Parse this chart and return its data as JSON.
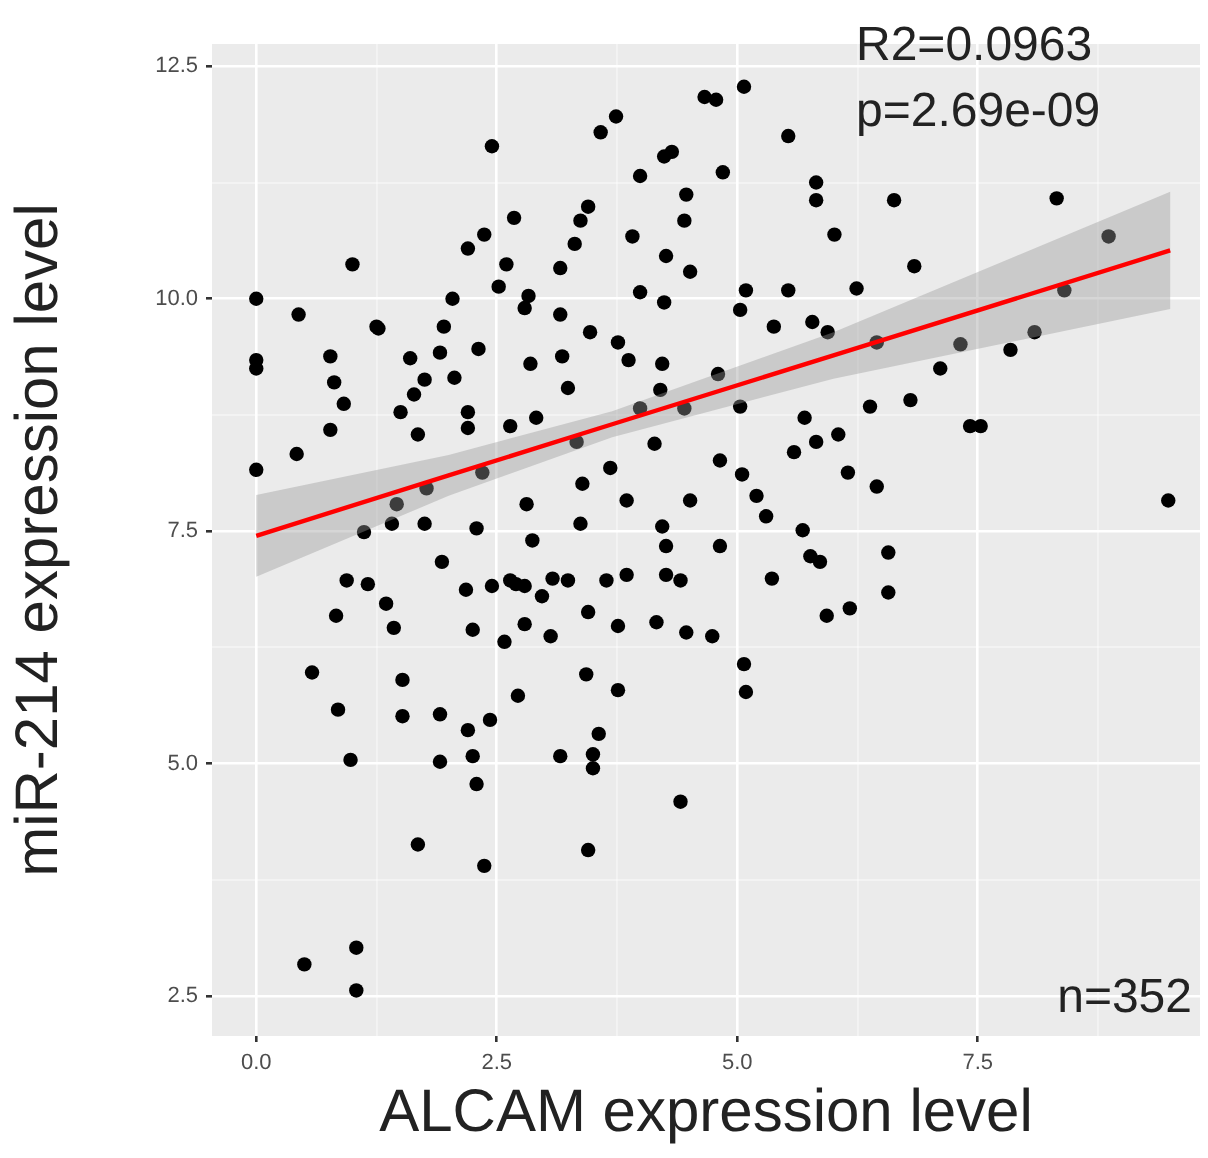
{
  "chart_data": {
    "type": "scatter",
    "xlabel": "ALCAM expression level",
    "ylabel": "miR-214 expression level",
    "annotations": [
      "R2=0.0963",
      "p=2.69e-09",
      "n=352"
    ],
    "xlim": [
      -0.46,
      9.81
    ],
    "ylim": [
      2.07,
      12.74
    ],
    "xticks": [
      {
        "value": 0,
        "label": "0.0"
      },
      {
        "value": 1.25,
        "label": null
      },
      {
        "value": 2.5,
        "label": "2.5"
      },
      {
        "value": 3.75,
        "label": null
      },
      {
        "value": 5,
        "label": "5.0"
      },
      {
        "value": 6.25,
        "label": null
      },
      {
        "value": 7.5,
        "label": "7.5"
      },
      {
        "value": 8.75,
        "label": null
      }
    ],
    "yticks": [
      {
        "value": 2.5,
        "label": "2.5"
      },
      {
        "value": 3.75,
        "label": null
      },
      {
        "value": 5,
        "label": "5.0"
      },
      {
        "value": 6.25,
        "label": null
      },
      {
        "value": 7.5,
        "label": "7.5"
      },
      {
        "value": 8.75,
        "label": null
      },
      {
        "value": 10,
        "label": "10.0"
      },
      {
        "value": 11.25,
        "label": null
      },
      {
        "value": 12.5,
        "label": "12.5"
      }
    ],
    "grid": true,
    "legend": false,
    "series": [
      {
        "type": "scatter",
        "color": "#000000",
        "marker": "circle",
        "x": [
          0,
          0,
          0,
          0,
          0.44,
          1.0,
          0.77,
          1.27,
          0.58,
          0.5,
          1.04,
          1.04,
          0.98,
          0.85,
          0.83,
          0.94,
          1.16,
          1.35,
          1.43,
          1.68,
          1.52,
          1.52,
          2.37,
          2.25,
          1.91,
          1.91,
          2.2,
          2.25,
          2.29,
          2.43,
          2.72,
          2.79,
          3.16,
          3.45,
          3.43,
          3.5,
          3.5,
          3.56,
          3.76,
          4.41,
          5.07,
          5.09,
          5.36,
          4.74,
          5.93,
          6.17,
          6.57,
          6.57,
          5.86,
          4.82,
          4.26,
          5.07,
          4.66,
          4.78,
          5.53,
          4.85,
          5.82,
          6.63,
          5.82,
          6.01,
          6.24,
          6.84,
          8.32,
          8.86,
          8.4,
          8.09,
          7.84,
          7.32,
          7.53,
          7.11,
          6.45,
          5.78,
          6.8,
          6.38,
          6.05,
          6.15,
          6.45,
          7.42,
          9.48,
          5.94,
          5.53,
          5.03,
          5.09,
          5.38,
          4.8,
          5.03,
          5.59,
          5.82,
          5.7,
          5.05,
          4.82,
          5.3,
          5.68,
          5.76,
          5.2,
          2.45,
          3.58,
          3.74,
          2.37,
          2.68,
          2.52,
          2.6,
          2.2,
          2.04,
          1.95,
          1.25,
          1.91,
          2.31,
          2.06,
          1.6,
          1.75,
          1.64,
          1.5,
          1.68,
          2.2,
          2.2,
          2.83,
          3.16,
          3.31,
          3.37,
          3.45,
          3.91,
          3.99,
          4.24,
          4.32,
          4.47,
          4.45,
          4.26,
          3.99,
          4.24,
          4.51,
          3.16,
          2.79,
          2.85,
          3.18,
          3.47,
          3.24,
          3.76,
          3.87,
          4.22,
          4.2,
          4.45,
          3.99,
          2.91,
          2.64,
          3.33,
          3.39,
          3.68,
          4.14,
          4.51,
          4.22,
          3.85,
          3.37,
          2.81,
          2.87,
          2.35,
          2.29,
          1.77,
          1.75,
          1.93,
          1.46,
          1.41,
          1.12,
          0.77,
          0.91,
          0.81,
          0.42,
          2.64,
          2.79,
          3.08,
          3.24,
          3.64,
          3.85,
          4.26,
          4.16,
          4.41,
          4.47,
          3.76,
          3.45,
          2.97,
          3.06,
          2.58,
          2.7,
          2.18,
          2.45
        ],
        "values": [
          10.0,
          9.34,
          9.25,
          8.16,
          9.83,
          10.37,
          9.38,
          9.68,
          5.98,
          2.84,
          3.02,
          2.56,
          5.04,
          5.58,
          6.59,
          6.97,
          6.93,
          6.72,
          6.46,
          4.13,
          5.9,
          5.51,
          3.9,
          6.44,
          5.53,
          5.02,
          5.36,
          5.08,
          4.78,
          5.47,
          5.73,
          6.5,
          5.08,
          4.07,
          5.96,
          5.1,
          4.95,
          5.32,
          5.79,
          4.59,
          6.07,
          5.77,
          6.99,
          6.37,
          6.59,
          6.67,
          6.84,
          7.27,
          7.17,
          7.34,
          7.34,
          12.28,
          12.17,
          12.14,
          11.75,
          11.36,
          11.06,
          11.06,
          11.25,
          10.69,
          10.11,
          10.35,
          11.08,
          10.67,
          10.09,
          9.64,
          9.45,
          9.51,
          8.63,
          9.25,
          9.53,
          9.75,
          8.91,
          8.84,
          8.54,
          8.13,
          7.98,
          8.63,
          7.83,
          9.64,
          10.09,
          9.88,
          10.09,
          9.7,
          9.19,
          8.84,
          8.35,
          8.46,
          8.72,
          8.11,
          8.26,
          7.66,
          7.51,
          7.23,
          7.88,
          11.64,
          11.79,
          11.96,
          10.69,
          10.87,
          10.13,
          10.37,
          10.54,
          10.0,
          9.7,
          9.7,
          9.42,
          9.46,
          9.15,
          9.36,
          9.13,
          8.97,
          8.78,
          8.54,
          8.61,
          8.78,
          10.03,
          10.33,
          10.59,
          10.84,
          10.99,
          10.67,
          11.32,
          11.53,
          11.58,
          11.12,
          10.84,
          10.46,
          10.07,
          9.96,
          10.29,
          9.83,
          9.9,
          9.3,
          9.38,
          9.64,
          9.04,
          9.53,
          9.34,
          9.3,
          9.02,
          8.82,
          8.82,
          8.72,
          8.63,
          8.46,
          8.01,
          8.18,
          8.44,
          7.83,
          7.55,
          7.83,
          7.58,
          7.79,
          7.4,
          8.13,
          7.53,
          7.96,
          7.58,
          7.17,
          7.79,
          7.58,
          7.49,
          8.59,
          8.87,
          9.1,
          8.33,
          6.97,
          6.91,
          6.99,
          6.97,
          6.97,
          7.03,
          7.03,
          6.52,
          6.97,
          6.41,
          6.48,
          6.63,
          6.8,
          6.37,
          6.31,
          6.93,
          6.87,
          6.91
        ]
      },
      {
        "type": "line",
        "color": "#ff0000",
        "x": [
          0,
          2,
          3.7,
          6,
          9.5
        ],
        "values": [
          7.45,
          8.1,
          8.65,
          9.39,
          10.52
        ],
        "lower": [
          7.01,
          7.88,
          8.51,
          9.14,
          9.89
        ],
        "upper": [
          7.89,
          8.32,
          8.79,
          9.64,
          11.15
        ]
      }
    ]
  }
}
